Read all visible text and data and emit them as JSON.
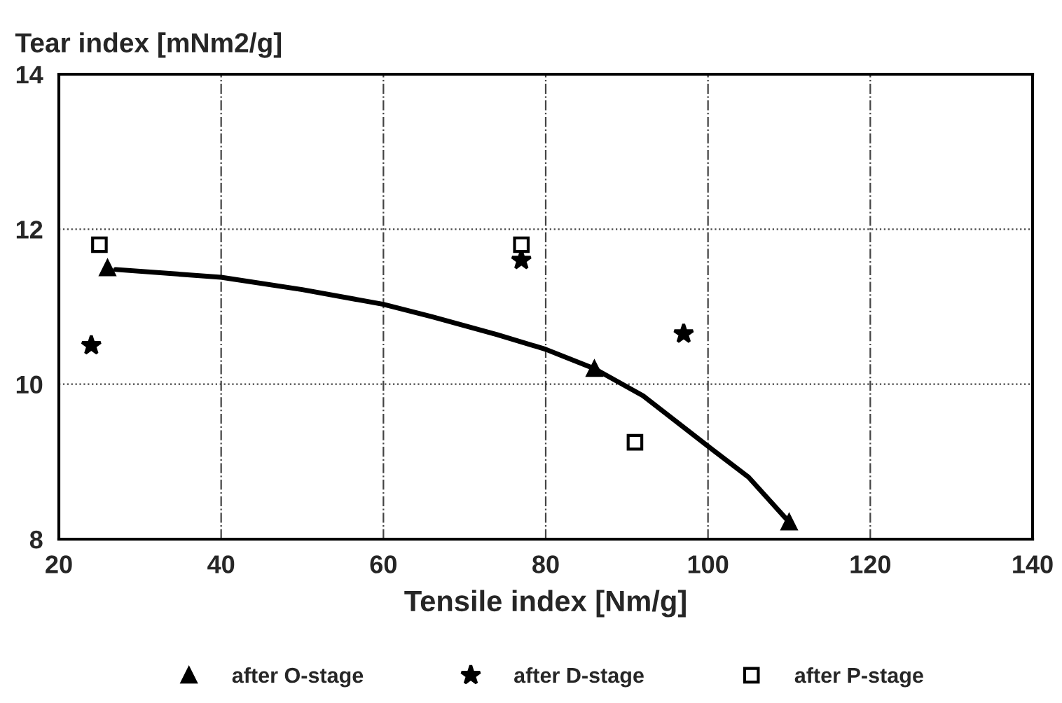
{
  "chart_data": {
    "type": "scatter",
    "xlabel": "Tensile index [Nm/g]",
    "ylabel": "Tear index [mNm2/g]",
    "xlim": [
      20,
      140
    ],
    "xticks": [
      20,
      40,
      60,
      80,
      100,
      120,
      140
    ],
    "ylim": [
      8,
      14
    ],
    "yticks": [
      8,
      10,
      12,
      14
    ],
    "grid": true,
    "legend": "bottom",
    "series": [
      {
        "name": "after O-stage",
        "color": "#000000",
        "marker": "triangle",
        "x": [
          26,
          86,
          110
        ],
        "values": [
          11.5,
          10.2,
          8.22
        ]
      },
      {
        "name": "after D-stage",
        "color": "#000000",
        "marker": "star",
        "x": [
          24,
          77,
          97
        ],
        "values": [
          10.5,
          11.6,
          10.65
        ]
      },
      {
        "name": "after P-stage",
        "color": "#000000",
        "marker": "square",
        "x": [
          25,
          77,
          91
        ],
        "values": [
          11.8,
          11.8,
          9.25
        ]
      },
      {
        "type": "line",
        "color": "#000000",
        "marker": "none",
        "x": [
          27,
          40,
          50,
          60,
          66,
          74,
          80,
          86,
          92,
          100,
          105,
          110
        ],
        "values": [
          11.48,
          11.38,
          11.22,
          11.03,
          10.87,
          10.64,
          10.45,
          10.2,
          9.85,
          9.2,
          8.8,
          8.22
        ]
      }
    ]
  }
}
